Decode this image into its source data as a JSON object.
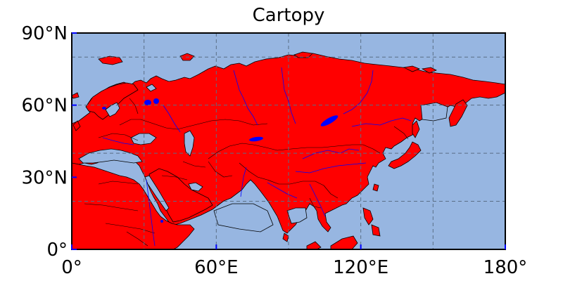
{
  "title": "Cartopy",
  "extent": {
    "lon": [
      0,
      180
    ],
    "lat": [
      0,
      90
    ]
  },
  "gridlines": {
    "lon": [
      0,
      30,
      60,
      90,
      120,
      150,
      180
    ],
    "lat": [
      0,
      20,
      40,
      60,
      80
    ],
    "style": "dashed"
  },
  "ticks": {
    "x": [
      {
        "lon": 0,
        "label": "0°"
      },
      {
        "lon": 60,
        "label": "60°E"
      },
      {
        "lon": 120,
        "label": "120°E"
      },
      {
        "lon": 180,
        "label": "180°"
      }
    ],
    "y": [
      {
        "lat": 0,
        "label": "0°"
      },
      {
        "lat": 30,
        "label": "30°N"
      },
      {
        "lat": 60,
        "label": "60°N"
      },
      {
        "lat": 90,
        "label": "90°N"
      }
    ]
  },
  "colors": {
    "ocean": "#97b6e1",
    "land": "#ff0000",
    "coastline": "#000000",
    "borders": "#000000",
    "rivers": "#0000ff",
    "lakes": "#0000ff",
    "tick": "#0000ff",
    "grid": "#5a6e85"
  },
  "features": [
    "ocean",
    "land",
    "coastline",
    "borders",
    "rivers",
    "lakes"
  ]
}
